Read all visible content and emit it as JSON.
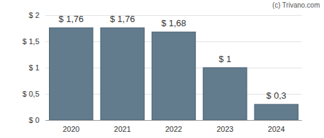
{
  "chart_data": {
    "type": "bar",
    "categories": [
      "2020",
      "2021",
      "2022",
      "2023",
      "2024"
    ],
    "values": [
      1.76,
      1.76,
      1.68,
      1,
      0.3
    ],
    "value_labels": [
      "$ 1,76",
      "$ 1,76",
      "$ 1,68",
      "$ 1",
      "$ 0,3"
    ],
    "data_labels": true,
    "color": "#627b8d",
    "ylim": [
      0,
      2
    ],
    "yticks": [
      {
        "value": 0,
        "label": "$ 0"
      },
      {
        "value": 0.5,
        "label": "$ 0,5"
      },
      {
        "value": 1,
        "label": "$ 1"
      },
      {
        "value": 1.5,
        "label": "$ 1,5"
      },
      {
        "value": 2,
        "label": "$ 2"
      }
    ],
    "grid": true,
    "annotations": [
      "(c) Trivano.com"
    ]
  }
}
